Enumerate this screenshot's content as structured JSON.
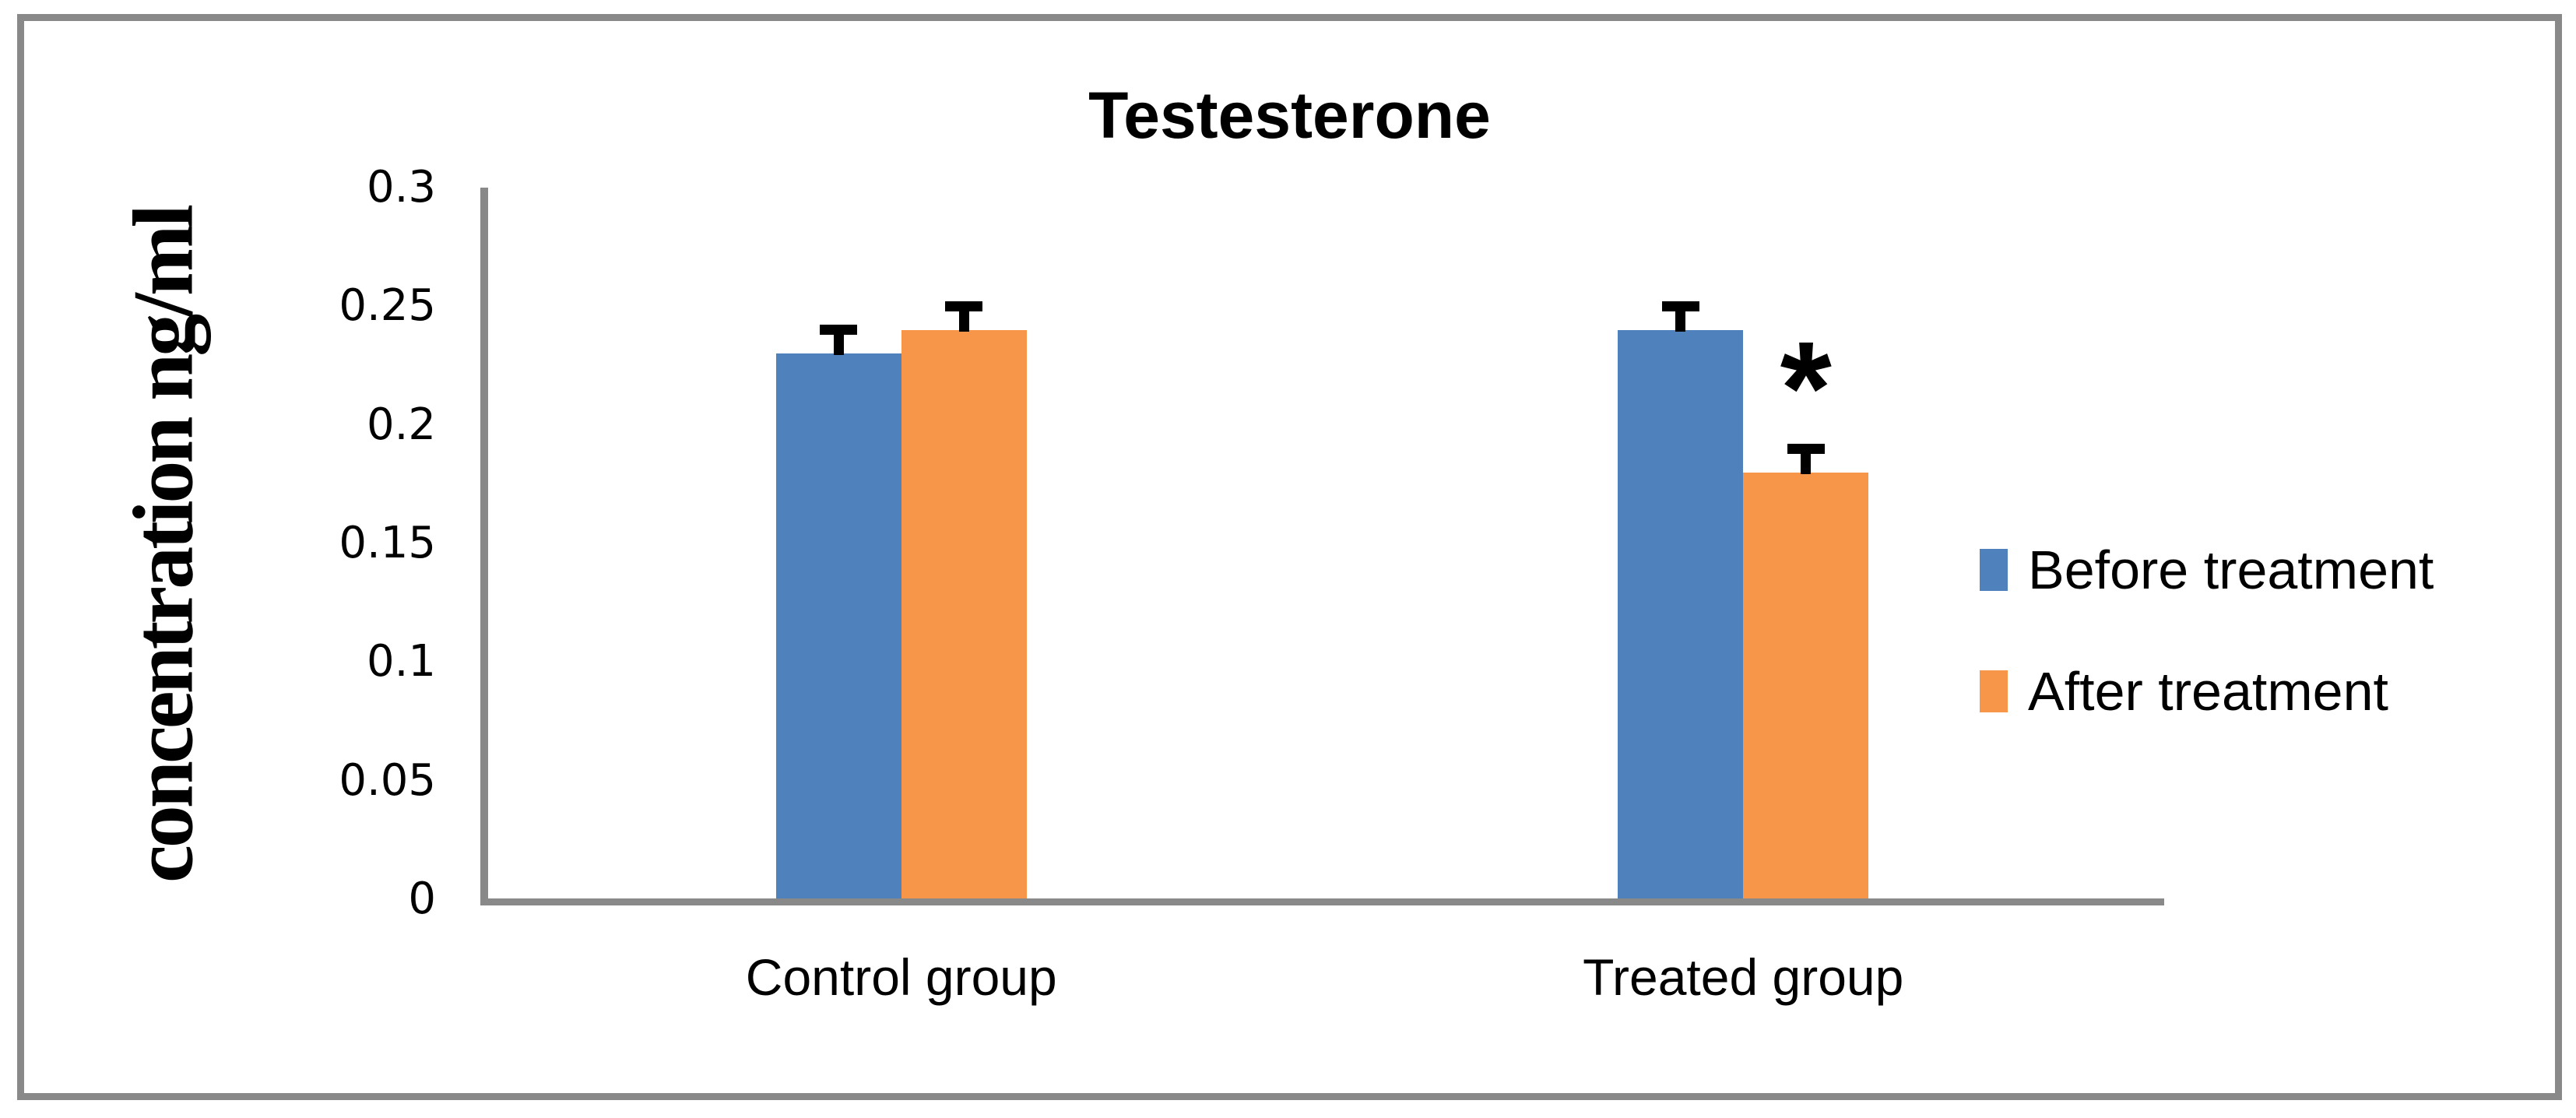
{
  "chart_data": {
    "type": "bar",
    "title": "Testesterone",
    "xlabel": "",
    "ylabel": "concentration ng/ml",
    "ylim": [
      0,
      0.3
    ],
    "ytick_labels": [
      "0.3",
      "0.25",
      "0.2",
      "0.15",
      "0.1",
      "0.05",
      "0"
    ],
    "categories": [
      "Control group",
      "Treated group"
    ],
    "series": [
      {
        "name": "Before treatment",
        "color": "#4F81BD",
        "values": [
          0.23,
          0.24
        ],
        "errors": [
          0.01,
          0.01
        ]
      },
      {
        "name": "After treatment",
        "color": "#F79648",
        "values": [
          0.24,
          0.18
        ],
        "errors": [
          0.01,
          0.01
        ]
      }
    ],
    "error_bar_direction": "plus",
    "grid": false,
    "legend_position": "right",
    "annotations": [
      {
        "text": "*",
        "category": "Treated group",
        "series": "After treatment"
      }
    ]
  },
  "colors": {
    "axis_line": "#898989",
    "frame_border": "#898989",
    "series_before": "#4F81BD",
    "series_after": "#F79648",
    "text": "#000000"
  }
}
